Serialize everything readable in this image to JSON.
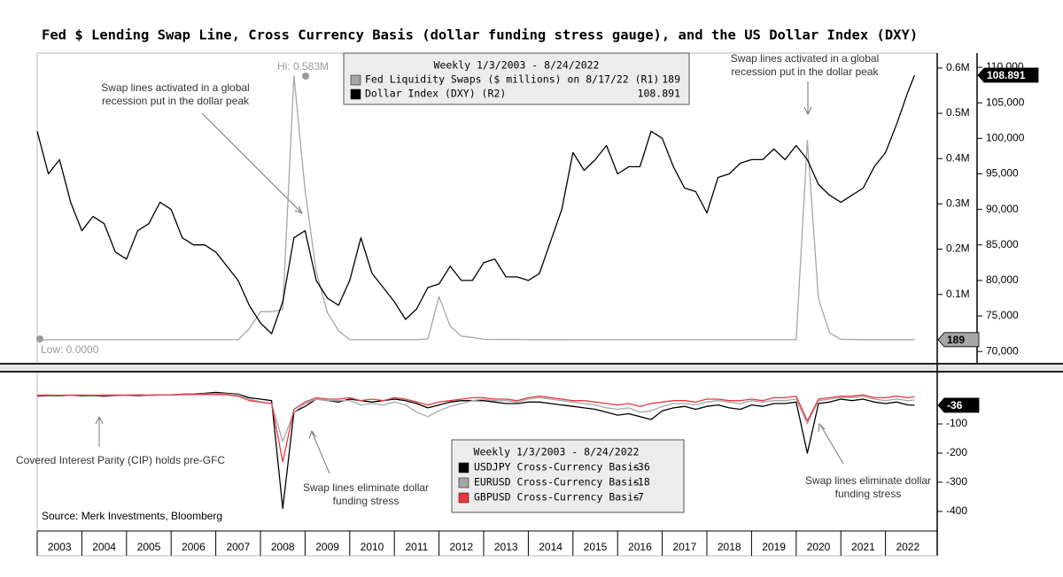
{
  "chart_data": [
    {
      "type": "line",
      "title": "Fed $ Lending Swap Line, Cross Currency Basis (dollar funding stress gauge), and the US Dollar Index (DXY)",
      "legend_title": "Weekly 1/3/2003 - 8/24/2022",
      "annotations": [
        "Hi: 0.583M",
        "Low: 0.0000",
        "Swap lines activated in a global recession put in the dollar peak",
        "Swap lines activated in a global recession put in the dollar peak"
      ],
      "x": [
        2003,
        2003.25,
        2003.5,
        2003.75,
        2004,
        2004.25,
        2004.5,
        2004.75,
        2005,
        2005.25,
        2005.5,
        2005.75,
        2006,
        2006.25,
        2006.5,
        2006.75,
        2007,
        2007.25,
        2007.5,
        2007.75,
        2008,
        2008.25,
        2008.5,
        2008.75,
        2009,
        2009.25,
        2009.5,
        2009.75,
        2010,
        2010.25,
        2010.5,
        2010.75,
        2011,
        2011.25,
        2011.5,
        2011.75,
        2012,
        2012.25,
        2012.5,
        2012.75,
        2013,
        2013.25,
        2013.5,
        2013.75,
        2014,
        2014.25,
        2014.5,
        2014.75,
        2015,
        2015.25,
        2015.5,
        2015.75,
        2016,
        2016.25,
        2016.5,
        2016.75,
        2017,
        2017.25,
        2017.5,
        2017.75,
        2018,
        2018.25,
        2018.5,
        2018.75,
        2019,
        2019.25,
        2019.5,
        2019.75,
        2020,
        2020.25,
        2020.5,
        2020.75,
        2021,
        2021.25,
        2021.5,
        2021.75,
        2022,
        2022.25,
        2022.5,
        2022.65
      ],
      "xlim": [
        2003,
        2023
      ],
      "ylim": [
        -51000,
        633000
      ],
      "yticks": [
        {
          "value": 100000,
          "label": "0.1M"
        },
        {
          "value": 200000,
          "label": "0.2M"
        },
        {
          "value": 300000,
          "label": "0.3M"
        },
        {
          "value": 400000,
          "label": "0.4M"
        },
        {
          "value": 500000,
          "label": "0.5M"
        },
        {
          "value": 600000,
          "label": "0.6M"
        }
      ],
      "y2lim": [
        68.4,
        112
      ],
      "y2ticks": [
        {
          "value": 70,
          "label": "70,000"
        },
        {
          "value": 75,
          "label": "75,000"
        },
        {
          "value": 80,
          "label": "80,000"
        },
        {
          "value": 85,
          "label": "85,000"
        },
        {
          "value": 90,
          "label": "90,000"
        },
        {
          "value": 95,
          "label": "95,000"
        },
        {
          "value": 100,
          "label": "100,000"
        },
        {
          "value": 105,
          "label": "105,000"
        },
        {
          "value": 110,
          "label": "110,000"
        }
      ],
      "series": [
        {
          "name": "Fed Liquidity Swaps ($ millions) on 8/17/22 (R1)",
          "color": "#a6a6a6",
          "values": [
            0,
            0,
            0,
            0,
            0,
            0,
            0,
            0,
            0,
            0,
            0,
            0,
            0,
            0,
            0,
            0,
            0,
            0,
            0,
            24000,
            62000,
            62000,
            67000,
            583000,
            330000,
            150000,
            60000,
            20000,
            0,
            0,
            0,
            0,
            0,
            0,
            0,
            2000,
            95000,
            30000,
            8000,
            5000,
            1000,
            500,
            500,
            500,
            200,
            200,
            200,
            200,
            100,
            100,
            100,
            100,
            100,
            100,
            100,
            100,
            100,
            100,
            100,
            100,
            100,
            100,
            100,
            100,
            100,
            100,
            100,
            100,
            0,
            440000,
            90000,
            15000,
            1000,
            500,
            300,
            200,
            200,
            200,
            189,
            189
          ]
        },
        {
          "name": "Dollar Index (DXY) (R2)",
          "color": "#000000",
          "axis": "y2",
          "values": [
            101,
            95,
            97,
            91,
            87,
            89,
            88,
            84,
            83,
            87,
            88,
            91,
            90,
            86,
            85,
            85,
            84,
            82,
            80,
            76.5,
            74,
            72.5,
            77,
            86,
            87,
            80,
            77.5,
            76.5,
            80,
            86,
            81,
            79,
            77,
            74.5,
            76,
            79,
            79.5,
            82,
            80,
            80,
            82.5,
            83,
            80.5,
            80.5,
            80,
            81,
            85.5,
            90,
            98,
            95.5,
            97,
            99,
            95,
            96,
            96,
            101,
            100,
            96,
            93,
            92.5,
            89.5,
            94.5,
            95,
            96.5,
            97,
            97,
            98.5,
            97,
            99,
            97,
            93.5,
            92,
            91,
            92,
            93,
            96,
            98,
            102,
            106.5,
            108.891
          ]
        }
      ]
    },
    {
      "type": "line",
      "legend_title": "Weekly 1/3/2003 - 8/24/2022",
      "annotations": [
        "Covered Interest Parity (CIP) holds pre-GFC",
        "Swap lines eliminate dollar funding stress",
        "Swap lines eliminate dollar funding stress"
      ],
      "source": "Source: Merk Investments, Bloomberg",
      "x": [
        2003,
        2003.25,
        2003.5,
        2003.75,
        2004,
        2004.25,
        2004.5,
        2004.75,
        2005,
        2005.25,
        2005.5,
        2005.75,
        2006,
        2006.25,
        2006.5,
        2006.75,
        2007,
        2007.25,
        2007.5,
        2007.75,
        2008,
        2008.25,
        2008.5,
        2008.75,
        2009,
        2009.25,
        2009.5,
        2009.75,
        2010,
        2010.25,
        2010.5,
        2010.75,
        2011,
        2011.25,
        2011.5,
        2011.75,
        2012,
        2012.25,
        2012.5,
        2012.75,
        2013,
        2013.25,
        2013.5,
        2013.75,
        2014,
        2014.25,
        2014.5,
        2014.75,
        2015,
        2015.25,
        2015.5,
        2015.75,
        2016,
        2016.25,
        2016.5,
        2016.75,
        2017,
        2017.25,
        2017.5,
        2017.75,
        2018,
        2018.25,
        2018.5,
        2018.75,
        2019,
        2019.25,
        2019.5,
        2019.75,
        2020,
        2020.25,
        2020.5,
        2020.75,
        2021,
        2021.25,
        2021.5,
        2021.75,
        2022,
        2022.25,
        2022.5,
        2022.65
      ],
      "xlim": [
        2003,
        2023
      ],
      "xticks": [
        2003,
        2004,
        2005,
        2006,
        2007,
        2008,
        2009,
        2010,
        2011,
        2012,
        2013,
        2014,
        2015,
        2016,
        2017,
        2018,
        2019,
        2020,
        2021,
        2022
      ],
      "ylim": [
        -467,
        73
      ],
      "yticks": [
        -100,
        -200,
        -300,
        -400
      ],
      "series": [
        {
          "name": "USDJPY Cross-Currency Basis",
          "color": "#000000",
          "values": [
            -5,
            -3,
            -4,
            -2,
            -4,
            -3,
            -5,
            -3,
            -2,
            -3,
            -2,
            -1,
            0,
            2,
            3,
            5,
            8,
            5,
            2,
            -10,
            -15,
            -20,
            -390,
            -60,
            -40,
            -15,
            -20,
            -25,
            -15,
            -20,
            -25,
            -20,
            -15,
            -20,
            -30,
            -45,
            -35,
            -25,
            -20,
            -20,
            -20,
            -25,
            -30,
            -30,
            -25,
            -25,
            -30,
            -35,
            -40,
            -45,
            -50,
            -60,
            -70,
            -65,
            -75,
            -85,
            -55,
            -45,
            -40,
            -50,
            -40,
            -35,
            -45,
            -50,
            -35,
            -40,
            -30,
            -30,
            -25,
            -200,
            -30,
            -25,
            -15,
            -20,
            -15,
            -25,
            -30,
            -25,
            -35,
            -36
          ]
        },
        {
          "name": "EURUSD Cross-Currency Basis",
          "color": "#a6a6a6",
          "values": [
            -3,
            -2,
            -3,
            -2,
            -2,
            -3,
            -2,
            -3,
            -2,
            -1,
            -2,
            -1,
            0,
            1,
            2,
            3,
            4,
            3,
            0,
            -15,
            -25,
            -30,
            -160,
            -60,
            -30,
            -15,
            -20,
            -20,
            -20,
            -35,
            -30,
            -35,
            -25,
            -35,
            -60,
            -75,
            -55,
            -40,
            -30,
            -20,
            -15,
            -20,
            -20,
            -25,
            -15,
            -10,
            -15,
            -20,
            -25,
            -30,
            -35,
            -45,
            -50,
            -45,
            -60,
            -55,
            -40,
            -30,
            -30,
            -35,
            -25,
            -20,
            -25,
            -30,
            -20,
            -25,
            -20,
            -20,
            -15,
            -100,
            -20,
            -15,
            -10,
            -10,
            -5,
            -15,
            -20,
            -15,
            -20,
            -18
          ]
        },
        {
          "name": "GBPUSD Cross-Currency Basis",
          "color": "#e8383d",
          "values": [
            -2,
            -1,
            -2,
            -1,
            -1,
            -2,
            -1,
            -1,
            -1,
            0,
            -1,
            0,
            0,
            0,
            1,
            1,
            1,
            0,
            -5,
            -20,
            -25,
            -30,
            -230,
            -50,
            -25,
            -10,
            -15,
            -15,
            -10,
            -20,
            -15,
            -20,
            -10,
            -15,
            -25,
            -35,
            -25,
            -20,
            -15,
            -10,
            -10,
            -15,
            -15,
            -20,
            -10,
            -5,
            -10,
            -15,
            -20,
            -20,
            -25,
            -30,
            -35,
            -30,
            -40,
            -30,
            -25,
            -20,
            -20,
            -25,
            -15,
            -15,
            -20,
            -20,
            -15,
            -20,
            -10,
            -10,
            -5,
            -90,
            -15,
            -10,
            -5,
            -5,
            0,
            -10,
            -10,
            -5,
            -10,
            -7
          ]
        }
      ]
    }
  ]
}
